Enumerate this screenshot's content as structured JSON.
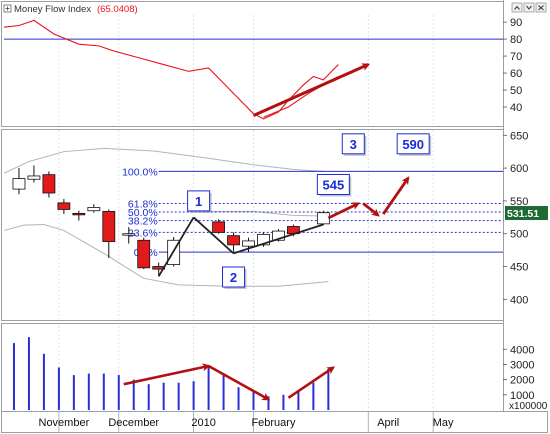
{
  "colors": {
    "line_blue": "#2a2fd0",
    "annotation_blue": "#1a2dd6",
    "mfi_red": "#e8141c",
    "candle_red": "#e31a1c",
    "arrow_red": "#b31010",
    "band_gray": "#b4b4b4",
    "price_badge_green": "#1d6a34",
    "price_badge_text": "#ffffff"
  },
  "chart_data": [
    {
      "id": "mfi",
      "type": "line",
      "title": "Money Flow Index",
      "value_label": "(65.0408)",
      "axis": "right",
      "ylim": [
        30,
        93
      ],
      "yticks": [
        40,
        50,
        60,
        70,
        80,
        90
      ],
      "reference_line": 80,
      "series": [
        {
          "values": [
            [
              0,
              87
            ],
            [
              3,
              88
            ],
            [
              5,
              90
            ],
            [
              6,
              91
            ],
            [
              10,
              83
            ],
            [
              15,
              77
            ],
            [
              19,
              76
            ],
            [
              22,
              73
            ],
            [
              27,
              69
            ],
            [
              32,
              65
            ],
            [
              37,
              61
            ],
            [
              41,
              63
            ],
            [
              44,
              54
            ],
            [
              47,
              45
            ],
            [
              50,
              36
            ],
            [
              52,
              33
            ],
            [
              55,
              37
            ],
            [
              57,
              44
            ],
            [
              60,
              53
            ],
            [
              62,
              58
            ],
            [
              64,
              56
            ],
            [
              66,
              62
            ],
            [
              67,
              65
            ]
          ]
        },
        {
          "values": [
            [
              52,
              34
            ],
            [
              57,
              40
            ],
            [
              61,
              48
            ],
            [
              67,
              58
            ]
          ]
        }
      ],
      "annotations": [
        {
          "kind": "arrow",
          "from": [
            50,
            35
          ],
          "to": [
            73,
            65
          ]
        }
      ]
    },
    {
      "id": "price",
      "type": "candlestick",
      "axis": "right",
      "ylim": [
        370,
        655
      ],
      "yticks": [
        400,
        450,
        500,
        550,
        600,
        650
      ],
      "last_price_label": "531.51",
      "last_price": 531.51,
      "candles": [
        {
          "x": 3,
          "o": 568,
          "h": 600,
          "l": 560,
          "c": 584
        },
        {
          "x": 6,
          "o": 583,
          "h": 604,
          "l": 578,
          "c": 588
        },
        {
          "x": 9,
          "o": 590,
          "h": 595,
          "l": 555,
          "c": 562
        },
        {
          "x": 12,
          "o": 547,
          "h": 553,
          "l": 530,
          "c": 537
        },
        {
          "x": 15,
          "o": 531,
          "h": 535,
          "l": 520,
          "c": 530
        },
        {
          "x": 18,
          "o": 535,
          "h": 545,
          "l": 532,
          "c": 540
        },
        {
          "x": 21,
          "o": 534,
          "h": 537,
          "l": 463,
          "c": 488
        },
        {
          "x": 25,
          "o": 500,
          "h": 510,
          "l": 485,
          "c": 500
        },
        {
          "x": 28,
          "o": 490,
          "h": 494,
          "l": 446,
          "c": 448
        },
        {
          "x": 31,
          "o": 450,
          "h": 456,
          "l": 435,
          "c": 446
        },
        {
          "x": 34,
          "o": 453,
          "h": 495,
          "l": 450,
          "c": 490
        },
        {
          "x": 43,
          "o": 518,
          "h": 522,
          "l": 500,
          "c": 502
        },
        {
          "x": 46,
          "o": 497,
          "h": 502,
          "l": 473,
          "c": 483
        },
        {
          "x": 49,
          "o": 481,
          "h": 494,
          "l": 472,
          "c": 489
        },
        {
          "x": 52,
          "o": 483,
          "h": 502,
          "l": 480,
          "c": 499
        },
        {
          "x": 55,
          "o": 490,
          "h": 507,
          "l": 488,
          "c": 504
        },
        {
          "x": 58,
          "o": 511,
          "h": 514,
          "l": 496,
          "c": 500
        },
        {
          "x": 64,
          "o": 515,
          "h": 535,
          "l": 513,
          "c": 532
        }
      ],
      "bollinger": {
        "upper": [
          [
            0,
            592
          ],
          [
            5,
            610
          ],
          [
            12,
            625
          ],
          [
            20,
            630
          ],
          [
            30,
            626
          ],
          [
            40,
            616
          ],
          [
            50,
            605
          ],
          [
            58,
            598
          ],
          [
            64,
            595
          ]
        ],
        "lower": [
          [
            0,
            505
          ],
          [
            4,
            513
          ],
          [
            8,
            514
          ],
          [
            12,
            505
          ],
          [
            20,
            470
          ],
          [
            28,
            432
          ],
          [
            35,
            422
          ],
          [
            45,
            420
          ],
          [
            55,
            420
          ],
          [
            65,
            427
          ]
        ],
        "middle": [
          [
            40,
            534
          ],
          [
            50,
            534
          ],
          [
            58,
            528
          ],
          [
            64,
            527
          ]
        ]
      },
      "fibonacci": {
        "x_start": 31,
        "levels": [
          {
            "label": "100.0%",
            "value": 595
          },
          {
            "label": "61.8%",
            "value": 546
          },
          {
            "label": "50.0%",
            "value": 533
          },
          {
            "label": "38.2%",
            "value": 520
          },
          {
            "label": "23.6%",
            "value": 502
          },
          {
            "label": "0.0%",
            "value": 472
          }
        ]
      },
      "trend_lines": [
        {
          "from": [
            31,
            435
          ],
          "to": [
            38,
            525
          ]
        },
        {
          "from": [
            38,
            525
          ],
          "to": [
            46,
            470
          ]
        },
        {
          "from": [
            46,
            470
          ],
          "to": [
            64,
            514
          ]
        }
      ],
      "labels": [
        {
          "text": "1",
          "x": 39,
          "y": 550
        },
        {
          "text": "2",
          "x": 46,
          "y": 434
        },
        {
          "text": "3",
          "x": 70,
          "y": 637
        },
        {
          "text": "545",
          "x": 66,
          "y": 575
        },
        {
          "text": "590",
          "x": 82,
          "y": 637
        }
      ],
      "arrows": [
        {
          "from": [
            65,
            524
          ],
          "to": [
            71,
            546
          ]
        },
        {
          "from": [
            72,
            546
          ],
          "to": [
            75,
            528
          ]
        },
        {
          "from": [
            76,
            530
          ],
          "to": [
            81,
            585
          ]
        }
      ]
    },
    {
      "id": "volume",
      "type": "bar",
      "axis": "right",
      "ylim": [
        0,
        5400
      ],
      "yticks": [
        1000,
        2000,
        3000,
        4000
      ],
      "unit_label": "x100000",
      "values": [
        [
          2,
          4400
        ],
        [
          5,
          4800
        ],
        [
          8,
          3700
        ],
        [
          11,
          2800
        ],
        [
          14,
          2300
        ],
        [
          17,
          2400
        ],
        [
          20,
          2400
        ],
        [
          23,
          2300
        ],
        [
          26,
          2000
        ],
        [
          29,
          1700
        ],
        [
          32,
          1800
        ],
        [
          35,
          1800
        ],
        [
          38,
          1900
        ],
        [
          41,
          2900
        ],
        [
          44,
          2300
        ],
        [
          47,
          1500
        ],
        [
          50,
          1300
        ],
        [
          53,
          900
        ],
        [
          56,
          1000
        ],
        [
          59,
          1200
        ],
        [
          62,
          1800
        ],
        [
          65,
          2700
        ]
      ],
      "arrows": [
        {
          "from": [
            24,
            1700
          ],
          "to": [
            41,
            2900
          ]
        },
        {
          "from": [
            41,
            2900
          ],
          "to": [
            53,
            700
          ]
        },
        {
          "from": [
            57,
            800
          ],
          "to": [
            66,
            2800
          ]
        }
      ]
    }
  ],
  "x_axis": {
    "range": [
      0,
      100
    ],
    "labels": [
      {
        "text": "November",
        "x": 12
      },
      {
        "text": "December",
        "x": 26
      },
      {
        "text": "2010",
        "x": 40
      },
      {
        "text": "February",
        "x": 54
      },
      {
        "text": "April",
        "x": 77
      },
      {
        "text": "May",
        "x": 88
      }
    ],
    "gridlines": [
      11,
      23,
      38,
      50,
      73,
      86
    ]
  }
}
